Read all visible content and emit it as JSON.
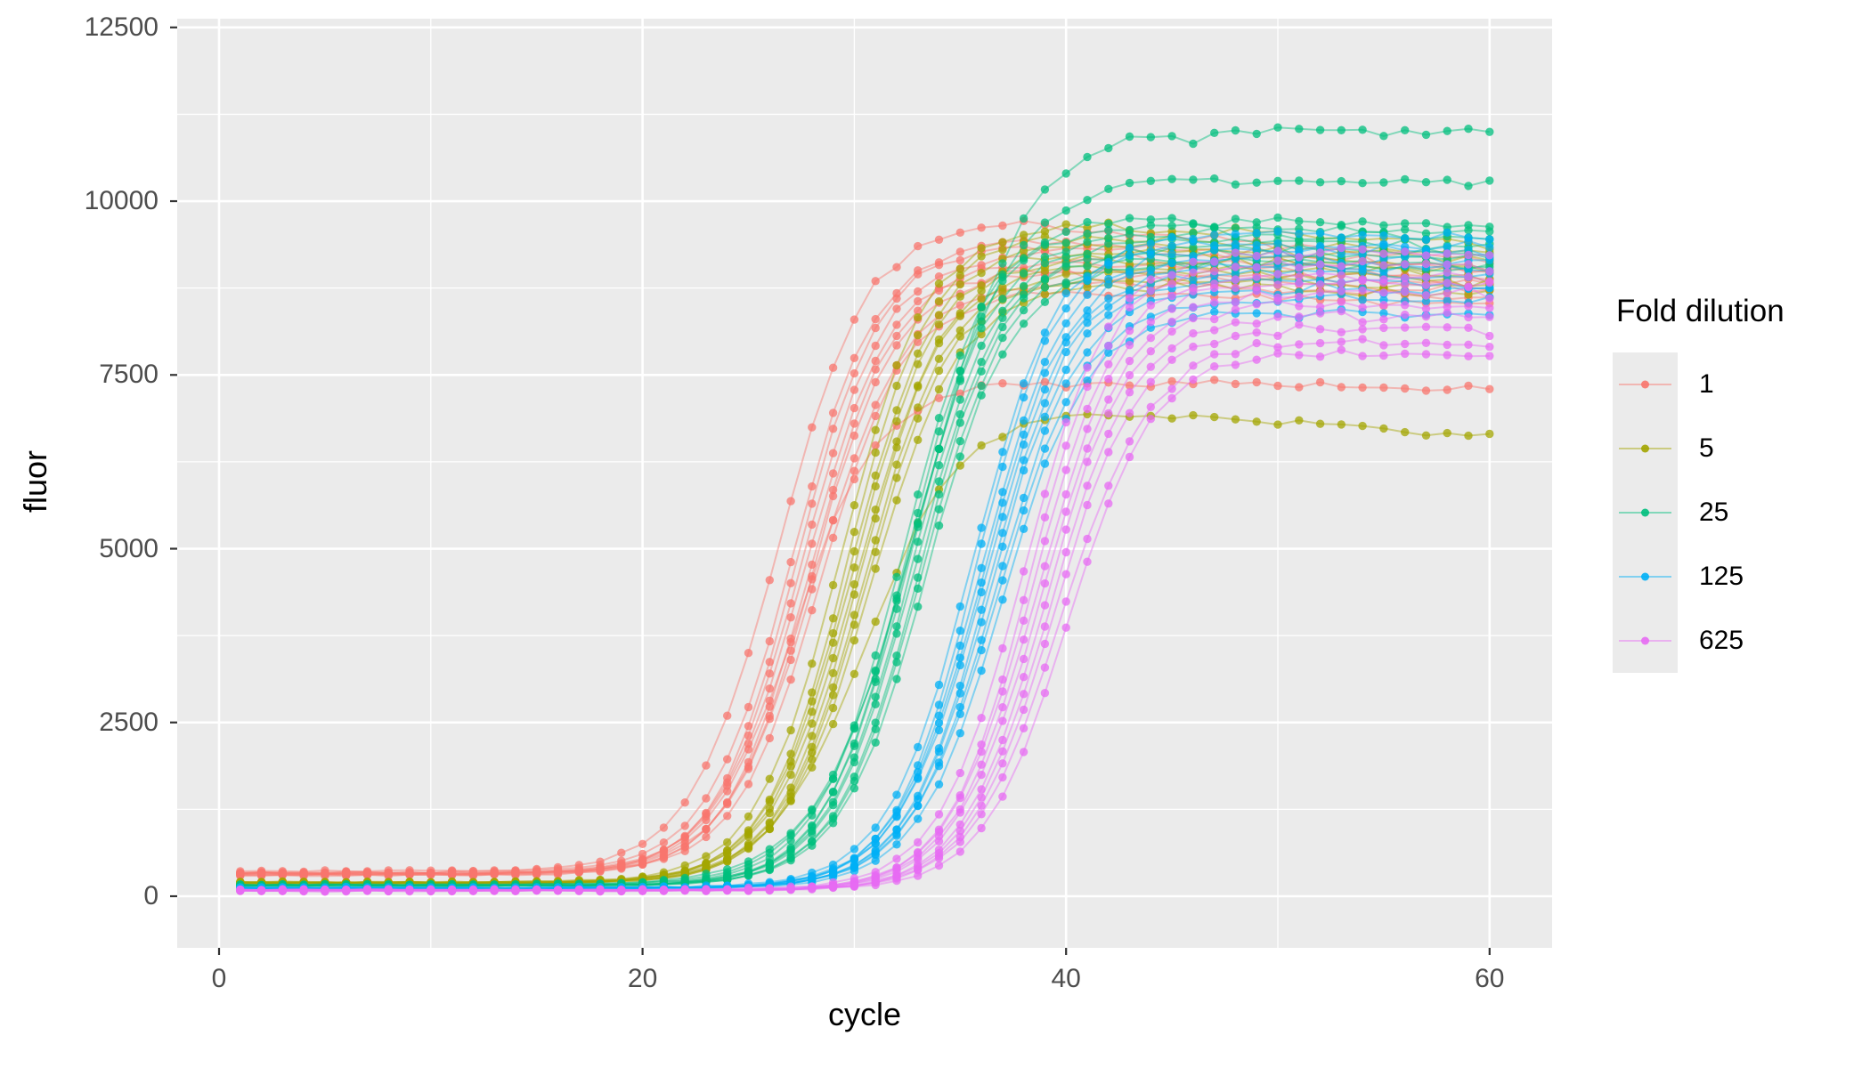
{
  "chart_data": {
    "type": "line",
    "title": "",
    "xlabel": "cycle",
    "ylabel": "fluor",
    "x_ticks": [
      0,
      20,
      40,
      60
    ],
    "y_ticks": [
      0,
      2500,
      5000,
      7500,
      10000,
      12500
    ],
    "x_minor_gridlines": [
      10,
      30,
      50
    ],
    "y_minor_gridlines": [
      1250,
      3750,
      6250,
      8750,
      11250
    ],
    "xlim": [
      -1.95,
      62.95
    ],
    "ylim": [
      -743,
      12628
    ],
    "cycle_start": 1,
    "cycle_end": 60,
    "grid": "on",
    "panel_background": "#ebebeb",
    "gridline_color": "#ffffff",
    "tick_color": "#333333",
    "tick_label_color": "#4d4d4d",
    "legend": {
      "title": "Fold dilution",
      "position": "right",
      "entries": [
        {
          "label": "1",
          "color": "#F8766D"
        },
        {
          "label": "5",
          "color": "#A3A500"
        },
        {
          "label": "25",
          "color": "#00BF7D"
        },
        {
          "label": "125",
          "color": "#00B0F6"
        },
        {
          "label": "625",
          "color": "#E76BF3"
        }
      ]
    },
    "series_model": "fluor(c) = base + (peak-base)/(1+exp(-k*(c-mid))) - dec*smoothramp(c-mid-9), for cycles c = 1..60, ~10 replicate wells per dilution",
    "replicate_fields": [
      "base",
      "mid",
      "k",
      "peak",
      "dec"
    ],
    "groups": [
      {
        "dilution": "1",
        "color": "#F8766D",
        "replicates": [
          [
            345,
            26.4,
            0.48,
            9700,
            26
          ],
          [
            360,
            27.1,
            0.5,
            9450,
            20
          ],
          [
            330,
            27.3,
            0.52,
            9350,
            18
          ],
          [
            320,
            27.5,
            0.5,
            9250,
            16
          ],
          [
            340,
            27.7,
            0.49,
            9150,
            15
          ],
          [
            310,
            27.9,
            0.51,
            9050,
            14
          ],
          [
            300,
            28.0,
            0.5,
            8950,
            12
          ],
          [
            325,
            28.2,
            0.48,
            8850,
            12
          ],
          [
            335,
            28.4,
            0.5,
            8700,
            10
          ],
          [
            315,
            27.2,
            0.5,
            7400,
            4
          ]
        ]
      },
      {
        "dilution": "5",
        "color": "#A3A500",
        "replicates": [
          [
            205,
            29.4,
            0.5,
            9650,
            16
          ],
          [
            200,
            29.7,
            0.52,
            9500,
            14
          ],
          [
            195,
            29.9,
            0.5,
            9400,
            13
          ],
          [
            190,
            30.0,
            0.5,
            9300,
            12
          ],
          [
            200,
            30.2,
            0.49,
            9200,
            11
          ],
          [
            185,
            30.3,
            0.51,
            9100,
            10
          ],
          [
            195,
            30.5,
            0.5,
            9000,
            9
          ],
          [
            190,
            30.6,
            0.5,
            8900,
            8
          ],
          [
            185,
            30.8,
            0.48,
            8800,
            8
          ],
          [
            190,
            30.5,
            0.45,
            7000,
            22
          ]
        ]
      },
      {
        "dilution": "25",
        "color": "#00BF7D",
        "replicates": [
          [
            165,
            33.2,
            0.42,
            11020,
            2
          ],
          [
            160,
            32.9,
            0.44,
            10330,
            4
          ],
          [
            165,
            32.3,
            0.5,
            9750,
            6
          ],
          [
            160,
            32.5,
            0.52,
            9650,
            6
          ],
          [
            155,
            32.6,
            0.5,
            9550,
            6
          ],
          [
            160,
            32.8,
            0.5,
            9450,
            6
          ],
          [
            150,
            32.9,
            0.49,
            9350,
            6
          ],
          [
            158,
            33.1,
            0.51,
            9280,
            6
          ],
          [
            152,
            33.2,
            0.5,
            9180,
            5
          ],
          [
            155,
            33.4,
            0.5,
            9100,
            5
          ]
        ]
      },
      {
        "dilution": "125",
        "color": "#00B0F6",
        "replicates": [
          [
            125,
            35.6,
            0.5,
            9560,
            8
          ],
          [
            120,
            35.8,
            0.52,
            9430,
            8
          ],
          [
            118,
            36.0,
            0.5,
            9320,
            7
          ],
          [
            122,
            36.1,
            0.5,
            9210,
            7
          ],
          [
            115,
            36.2,
            0.49,
            9100,
            7
          ],
          [
            120,
            36.4,
            0.51,
            9000,
            6
          ],
          [
            112,
            36.5,
            0.5,
            8880,
            6
          ],
          [
            118,
            36.7,
            0.5,
            8760,
            6
          ],
          [
            110,
            36.8,
            0.48,
            8600,
            5
          ],
          [
            115,
            37.0,
            0.5,
            8420,
            5
          ]
        ]
      },
      {
        "dilution": "625",
        "color": "#E76BF3",
        "replicates": [
          [
            92,
            38.0,
            0.5,
            9280,
            6
          ],
          [
            88,
            38.3,
            0.52,
            9120,
            6
          ],
          [
            85,
            38.5,
            0.5,
            8980,
            6
          ],
          [
            90,
            38.7,
            0.5,
            8840,
            5
          ],
          [
            82,
            38.9,
            0.49,
            8700,
            5
          ],
          [
            88,
            39.1,
            0.51,
            8540,
            5
          ],
          [
            80,
            39.3,
            0.5,
            8360,
            4
          ],
          [
            86,
            39.5,
            0.5,
            8180,
            4
          ],
          [
            78,
            39.8,
            0.48,
            7990,
            3
          ],
          [
            84,
            40.1,
            0.5,
            7820,
            3
          ]
        ]
      }
    ]
  }
}
